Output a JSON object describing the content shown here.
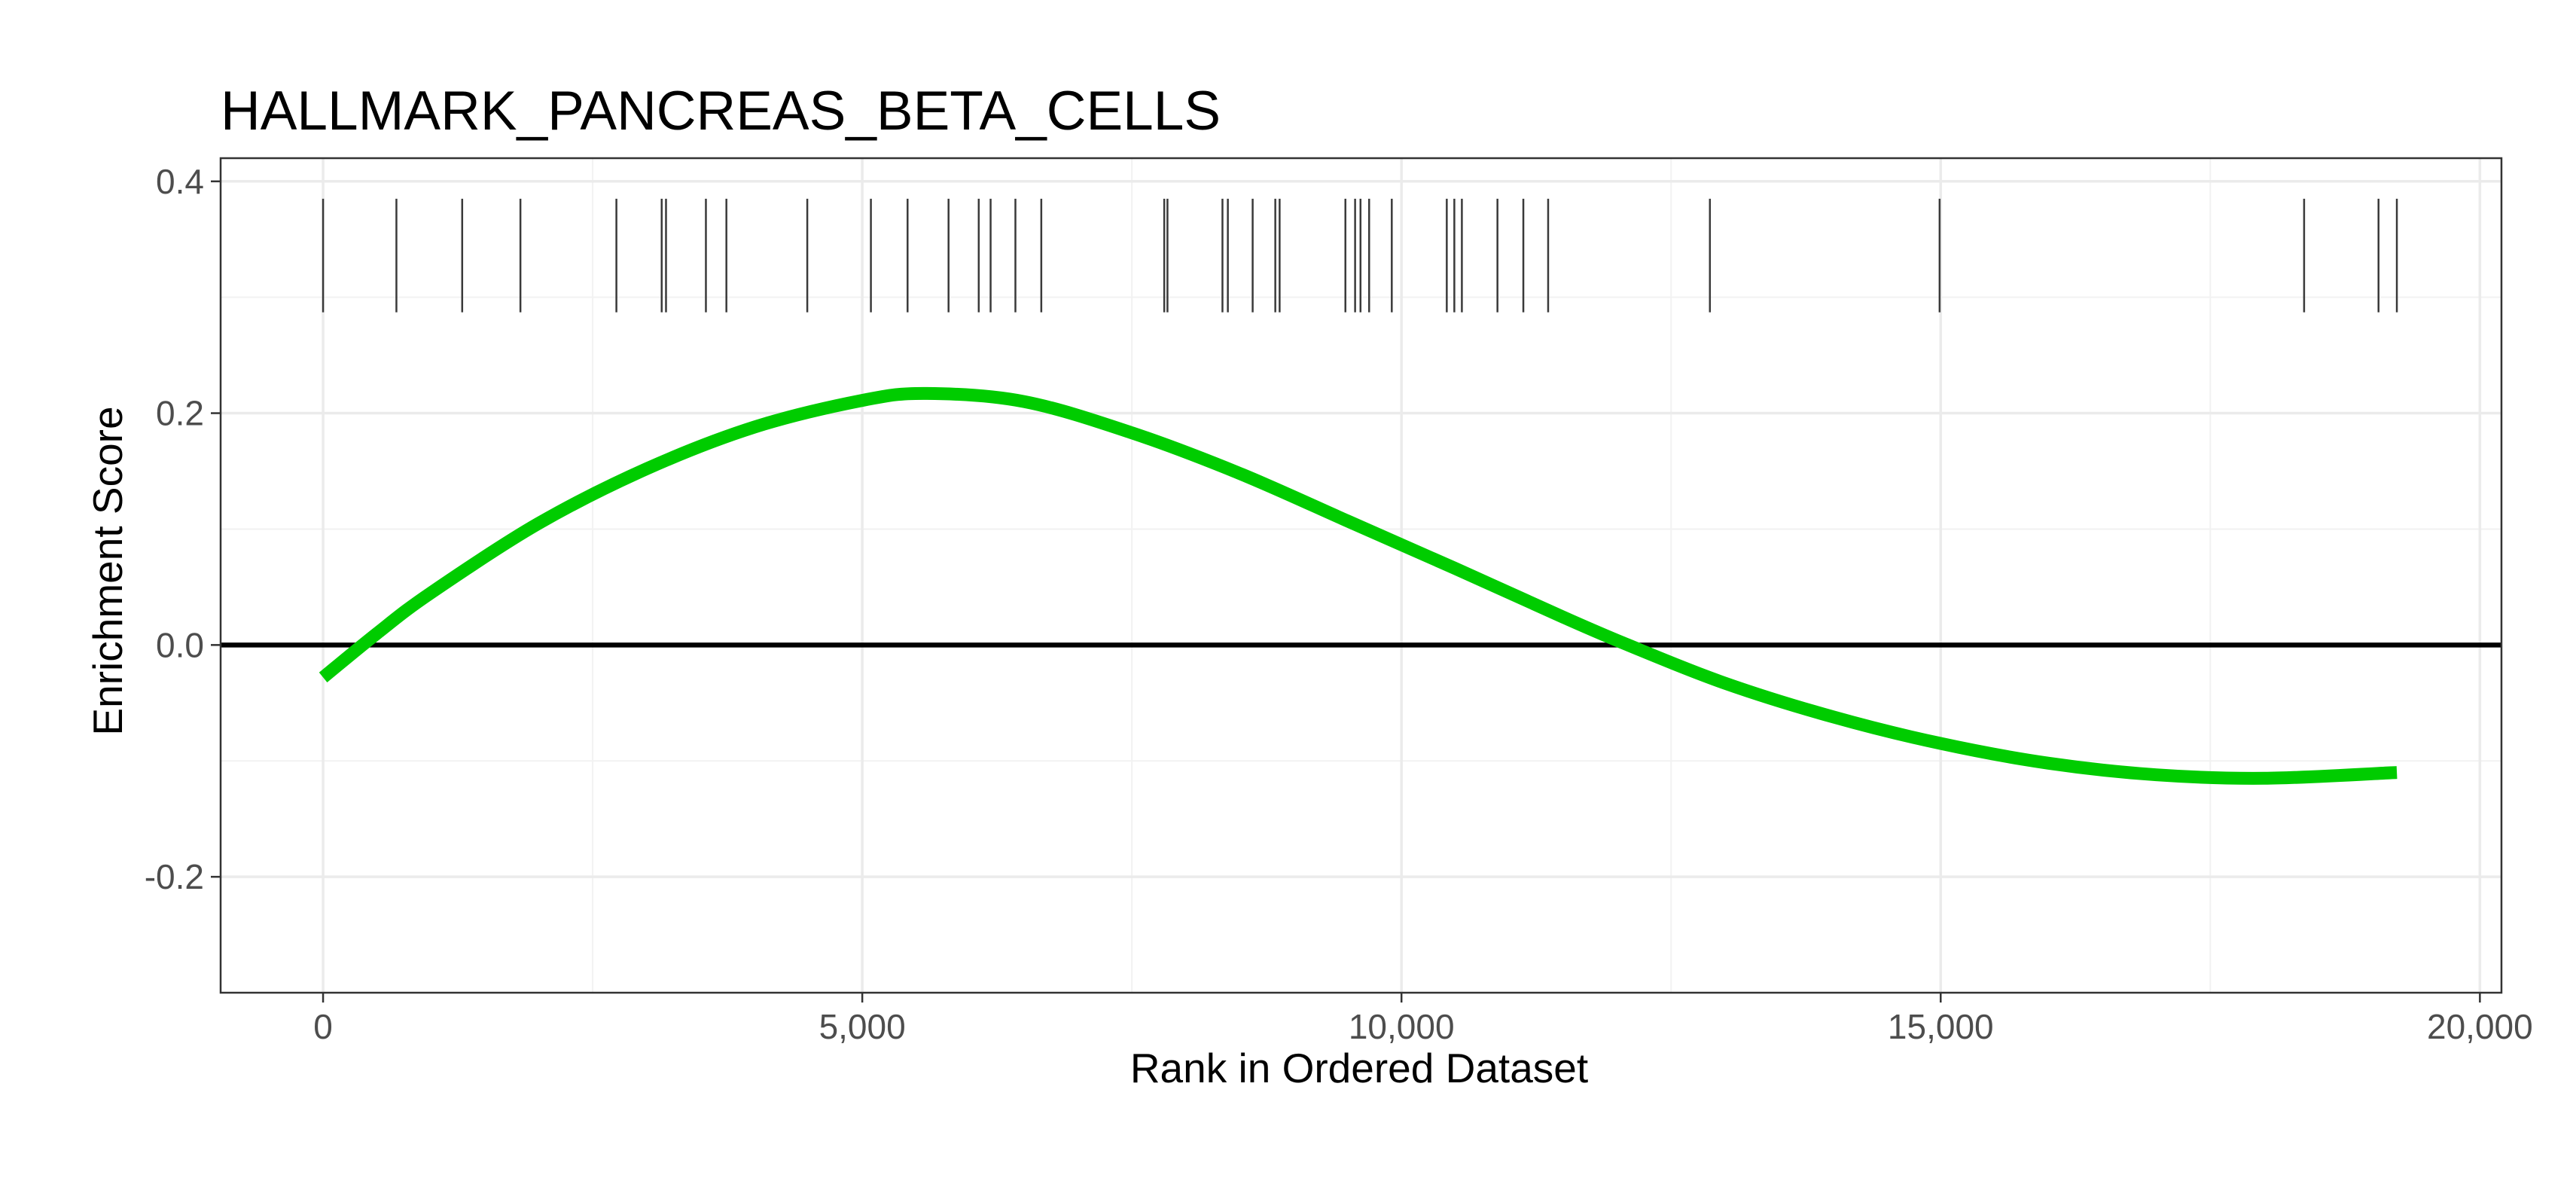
{
  "chart_data": {
    "type": "line",
    "title": "HALLMARK_PANCREAS_BETA_CELLS",
    "xlabel": "Rank in Ordered Dataset",
    "ylabel": "Enrichment Score",
    "xlim": [
      -950,
      20200
    ],
    "ylim": [
      -0.3,
      0.42
    ],
    "x_ticks": [
      0,
      5000,
      10000,
      15000,
      20000
    ],
    "x_tick_labels": [
      "0",
      "5,000",
      "10,000",
      "15,000",
      "20,000"
    ],
    "y_ticks": [
      -0.2,
      0.0,
      0.2,
      0.4
    ],
    "y_tick_labels": [
      "-0.2",
      "0.0",
      "0.2",
      "0.4"
    ],
    "grid": true,
    "reference_line_y": 0,
    "hit_ticks": {
      "y_range": [
        0.287,
        0.385
      ],
      "x": [
        0,
        680,
        1290,
        1830,
        2720,
        3140,
        3180,
        3550,
        3740,
        4490,
        5080,
        5420,
        5800,
        6080,
        6190,
        6420,
        6660,
        7800,
        7830,
        8340,
        8390,
        8620,
        8830,
        8870,
        9480,
        9570,
        9620,
        9700,
        9910,
        10420,
        10490,
        10560,
        10890,
        11130,
        11360,
        12860,
        14990,
        18370,
        19060,
        19230
      ]
    },
    "series": [
      {
        "color": "#00cc00",
        "x": [
          0,
          500,
          1000,
          2000,
          3000,
          4000,
          5000,
          5600,
          6500,
          7500,
          8500,
          9500,
          10500,
          11500,
          12100,
          13000,
          14000,
          15000,
          16000,
          17000,
          18000,
          19230
        ],
        "y": [
          -0.028,
          0.01,
          0.045,
          0.105,
          0.152,
          0.188,
          0.211,
          0.217,
          0.21,
          0.183,
          0.148,
          0.107,
          0.066,
          0.024,
          0.0,
          -0.033,
          -0.062,
          -0.085,
          -0.102,
          -0.112,
          -0.115,
          -0.11
        ]
      }
    ]
  }
}
